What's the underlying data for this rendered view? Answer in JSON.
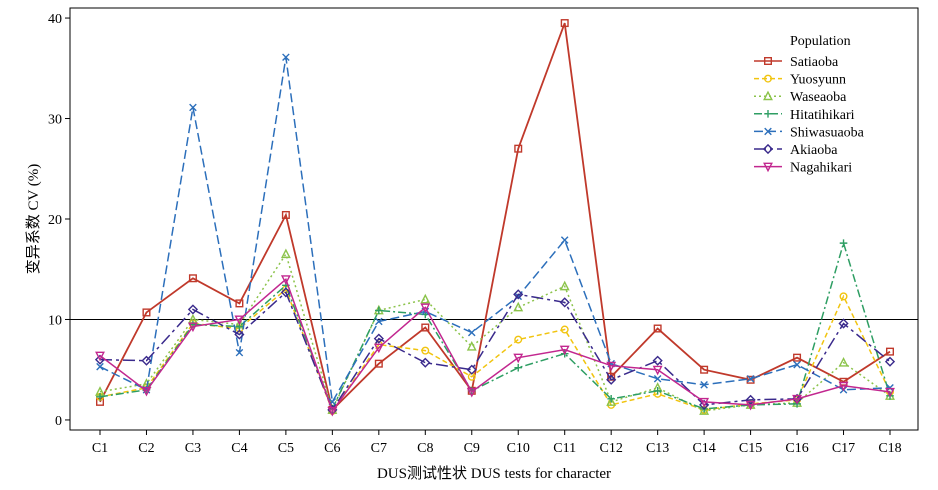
{
  "chart_data": {
    "type": "line",
    "xlabel": "DUS测试性状 DUS tests for character",
    "ylabel": "变异系数 CV (%)",
    "categories": [
      "C1",
      "C2",
      "C3",
      "C4",
      "C5",
      "C6",
      "C7",
      "C8",
      "C9",
      "C10",
      "C11",
      "C12",
      "C13",
      "C14",
      "C15",
      "C16",
      "C17",
      "C18"
    ],
    "ylim": [
      -1,
      41
    ],
    "yticks": [
      0,
      10,
      20,
      30,
      40
    ],
    "reference_line": 10,
    "grid": false,
    "legend": {
      "title": "Population",
      "placement": "top-right"
    },
    "series": [
      {
        "name": "Satiaoba",
        "color": "#c0392b",
        "dash": "",
        "marker": "square",
        "values": [
          1.8,
          10.7,
          14.1,
          11.6,
          20.4,
          1.0,
          5.6,
          9.2,
          2.9,
          27.0,
          39.5,
          4.3,
          9.1,
          5.0,
          4.0,
          6.2,
          3.8,
          6.8
        ]
      },
      {
        "name": "Yuosyunn",
        "color": "#f1c40f",
        "dash": "5,3",
        "marker": "circle",
        "values": [
          2.3,
          3.2,
          9.6,
          9.1,
          13.0,
          0.9,
          7.5,
          6.9,
          4.3,
          8.0,
          9.0,
          1.5,
          2.6,
          1.0,
          1.6,
          2.0,
          12.3,
          2.8
        ]
      },
      {
        "name": "Waseaoba",
        "color": "#8bc34a",
        "dash": "2,3",
        "marker": "triangle",
        "values": [
          2.8,
          3.6,
          10.0,
          9.5,
          16.5,
          1.0,
          10.9,
          12.0,
          7.3,
          11.2,
          13.3,
          1.8,
          3.2,
          0.9,
          1.5,
          1.7,
          5.7,
          2.4
        ]
      },
      {
        "name": "Hitatihikari",
        "color": "#2e9e63",
        "dash": "8,3,2,3",
        "marker": "plus",
        "values": [
          2.3,
          3.0,
          9.5,
          9.3,
          13.4,
          1.1,
          10.9,
          10.5,
          2.9,
          5.2,
          6.6,
          2.1,
          2.9,
          1.1,
          1.5,
          1.6,
          17.6,
          2.4
        ]
      },
      {
        "name": "Shiwasuaoba",
        "color": "#2c6fbb",
        "dash": "9,4",
        "marker": "x",
        "values": [
          5.3,
          3.0,
          31.1,
          6.7,
          36.1,
          1.8,
          9.8,
          10.8,
          8.7,
          12.3,
          17.9,
          5.6,
          4.1,
          3.5,
          4.1,
          5.5,
          3.0,
          3.2
        ]
      },
      {
        "name": "Akiaoba",
        "color": "#3a2a8c",
        "dash": "12,4,3,4",
        "marker": "diamond",
        "values": [
          6.0,
          5.9,
          11.0,
          8.5,
          12.7,
          1.0,
          8.1,
          5.7,
          5.0,
          12.5,
          11.7,
          4.0,
          5.9,
          1.5,
          2.0,
          2.1,
          9.6,
          5.8
        ]
      },
      {
        "name": "Nagahikari",
        "color": "#c2278f",
        "dash": "",
        "marker": "triangle-down",
        "values": [
          6.4,
          2.9,
          9.3,
          10.0,
          14.0,
          0.9,
          7.2,
          11.2,
          2.8,
          6.2,
          7.0,
          5.4,
          5.0,
          1.8,
          1.5,
          2.1,
          3.4,
          2.8
        ]
      }
    ]
  }
}
